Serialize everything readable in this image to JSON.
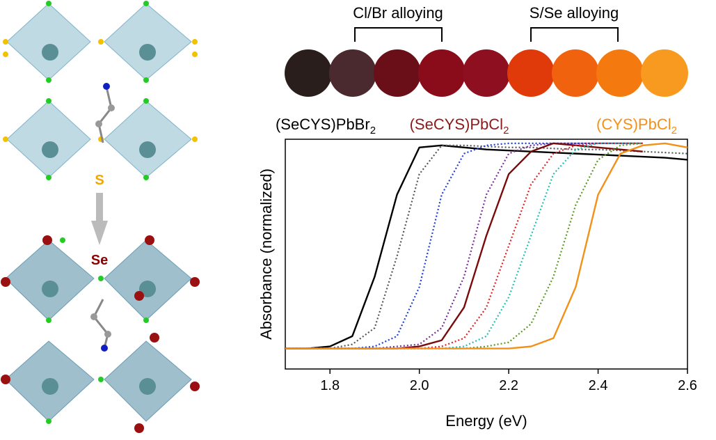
{
  "illustration": {
    "top_atom": "S",
    "bottom_atom": "Se"
  },
  "swatches": {
    "bracket_left": "Cl/Br alloying",
    "bracket_right": "S/Se alloying",
    "labels": [
      {
        "text": "(SeCYS)PbBr",
        "sub": "2"
      },
      {
        "text": "(SeCYS)PbCl",
        "sub": "2"
      },
      {
        "text": "(CYS)PbCl",
        "sub": "2"
      }
    ]
  },
  "chart_data": {
    "type": "line",
    "xlabel": "Energy (eV)",
    "ylabel": "Absorbance (normalized)",
    "x": [
      1.7,
      1.75,
      1.8,
      1.85,
      1.9,
      1.95,
      2.0,
      2.05,
      2.1,
      2.15,
      2.2,
      2.25,
      2.3,
      2.35,
      2.4,
      2.45,
      2.5,
      2.55,
      2.6
    ],
    "xlim": [
      1.7,
      2.6
    ],
    "xticks": [
      1.8,
      {
        "value": 2,
        "label": "2.0"
      },
      2.2,
      2.4,
      2.6
    ],
    "ylim": [
      -0.1,
      1.02
    ],
    "series": [
      {
        "color": "#000000",
        "dotted": false,
        "values": [
          0,
          0,
          0.01,
          0.06,
          0.35,
          0.75,
          0.98,
          0.99,
          0.98,
          0.97,
          0.965,
          0.96,
          0.955,
          0.95,
          0.945,
          0.94,
          0.935,
          0.93,
          0.92
        ]
      },
      {
        "color": "#555555",
        "dotted": true,
        "values": [
          0,
          0,
          0,
          0.02,
          0.1,
          0.45,
          0.85,
          0.99,
          0.99,
          0.985,
          0.98,
          0.98,
          0.975,
          0.97,
          0.97,
          0.965,
          0.96,
          0.955,
          0.95
        ]
      },
      {
        "color": "#1f3fd8",
        "dotted": true,
        "values": [
          0,
          0,
          0,
          0,
          0.01,
          0.06,
          0.3,
          0.75,
          0.95,
          0.99,
          1,
          1,
          1,
          1,
          1,
          1,
          1,
          null,
          null
        ]
      },
      {
        "color": "#7a2a9a",
        "dotted": true,
        "values": [
          0,
          0,
          0,
          0,
          0,
          0.01,
          0.02,
          0.1,
          0.35,
          0.75,
          0.95,
          0.99,
          1,
          1,
          1,
          1,
          1,
          null,
          null
        ]
      },
      {
        "color": "#7a0a0a",
        "dotted": false,
        "values": [
          0,
          0,
          0,
          0,
          0,
          0,
          0.01,
          0.04,
          0.2,
          0.55,
          0.85,
          0.96,
          1,
          0.99,
          0.98,
          0.97,
          0.96,
          null,
          null
        ]
      },
      {
        "color": "#e02020",
        "dotted": true,
        "values": [
          0,
          0,
          0,
          0,
          0,
          0,
          0,
          0.01,
          0.05,
          0.2,
          0.5,
          0.8,
          0.95,
          0.99,
          1,
          1,
          1,
          null,
          null
        ]
      },
      {
        "color": "#20c0b0",
        "dotted": true,
        "values": [
          0,
          0,
          0,
          0,
          0,
          0,
          0,
          0,
          0.01,
          0.06,
          0.25,
          0.55,
          0.85,
          0.97,
          1,
          1,
          1,
          null,
          null
        ]
      },
      {
        "color": "#5a9a20",
        "dotted": true,
        "values": [
          0,
          0,
          0,
          0,
          0,
          0,
          0,
          0,
          0,
          0.01,
          0.03,
          0.12,
          0.35,
          0.7,
          0.92,
          0.99,
          1,
          null,
          null
        ]
      },
      {
        "color": "#f39018",
        "dotted": false,
        "values": [
          0,
          0,
          0,
          0,
          0,
          0,
          0,
          0,
          0,
          0,
          0,
          0.01,
          0.05,
          0.3,
          0.75,
          0.95,
          0.99,
          1,
          0.98
        ]
      }
    ]
  }
}
